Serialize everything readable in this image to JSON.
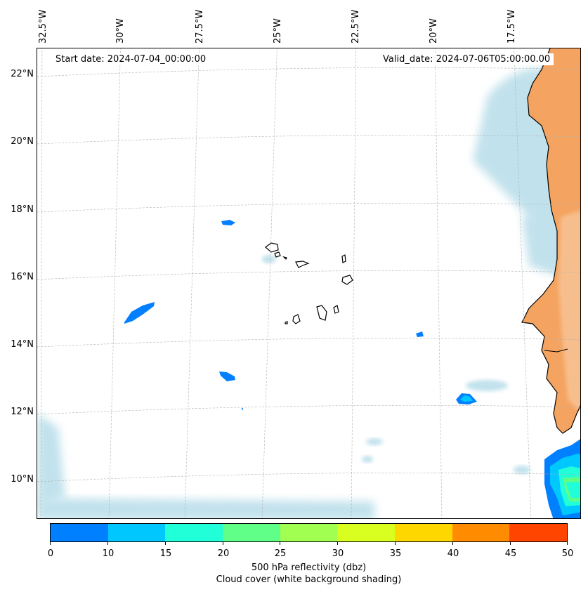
{
  "map": {
    "start_date": "Start date: 2024-07-04_00:00:00",
    "valid_date": "Valid_date: 2024-07-06T05:00:00.00",
    "lon_labels": [
      "32.5°W",
      "30°W",
      "27.5°W",
      "25°W",
      "22.5°W",
      "20°W",
      "17.5°W"
    ],
    "lat_labels": [
      "22°N",
      "20°N",
      "18°N",
      "16°N",
      "14°N",
      "12°N",
      "10°N"
    ],
    "colors": {
      "land": "#f4a460",
      "land_light": "#f9c9a0",
      "cloud": "#add8e6",
      "coast": "#000000",
      "grid": "#b0b0b0"
    }
  },
  "colorbar": {
    "colors": [
      "#0080ff",
      "#00c8ff",
      "#20ffd8",
      "#60ff88",
      "#a0ff50",
      "#d8ff20",
      "#ffd700",
      "#ff8c00",
      "#ff4500"
    ],
    "ticks": [
      "0",
      "10",
      "15",
      "20",
      "25",
      "30",
      "35",
      "40",
      "45",
      "50"
    ],
    "title_line1": "500 hPa reflectivity (dbz)",
    "title_line2": "Cloud cover (white background shading)"
  }
}
